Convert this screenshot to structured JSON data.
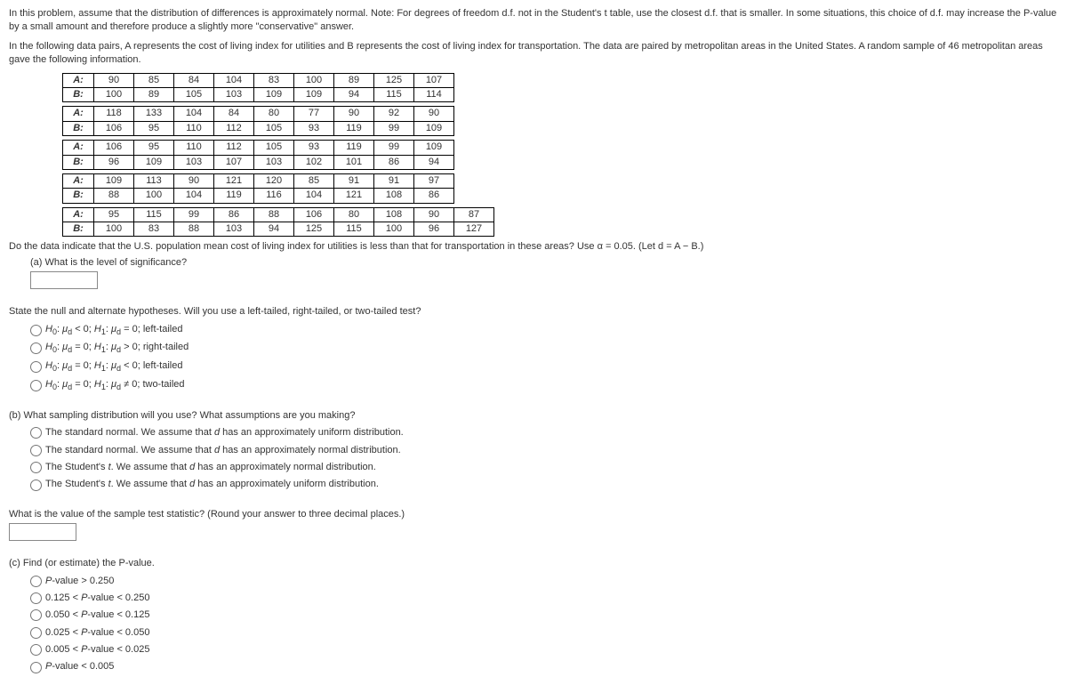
{
  "intro": {
    "p1": "In this problem, assume that the distribution of differences is approximately normal. Note: For degrees of freedom d.f. not in the Student's t table, use the closest d.f. that is smaller. In some situations, this choice of d.f. may increase the P-value by a small amount and therefore produce a slightly more \"conservative\" answer.",
    "p2": "In the following data pairs, A represents the cost of living index for utilities and B represents the cost of living index for transportation. The data are paired by metropolitan areas in the United States. A random sample of 46 metropolitan areas gave the following information."
  },
  "tables": [
    {
      "A": [
        90,
        85,
        84,
        104,
        83,
        100,
        89,
        125,
        107
      ],
      "B": [
        100,
        89,
        105,
        103,
        109,
        109,
        94,
        115,
        114
      ]
    },
    {
      "A": [
        118,
        133,
        104,
        84,
        80,
        77,
        90,
        92,
        90
      ],
      "B": [
        106,
        95,
        110,
        112,
        105,
        93,
        119,
        99,
        109
      ]
    },
    {
      "A": [
        106,
        95,
        110,
        112,
        105,
        93,
        119,
        99,
        109
      ],
      "B": [
        96,
        109,
        103,
        107,
        103,
        102,
        101,
        86,
        94
      ]
    },
    {
      "A": [
        109,
        113,
        90,
        121,
        120,
        85,
        91,
        91,
        97
      ],
      "B": [
        88,
        100,
        104,
        119,
        116,
        104,
        121,
        108,
        86
      ]
    },
    {
      "A": [
        95,
        115,
        99,
        86,
        88,
        106,
        80,
        108,
        90,
        87
      ],
      "B": [
        100,
        83,
        88,
        103,
        94,
        125,
        115,
        100,
        96,
        127
      ]
    }
  ],
  "questionLine": "Do the data indicate that the U.S. population mean cost of living index for utilities is less than that for transportation in these areas? Use α = 0.05. (Let d = A − B.)",
  "partA": {
    "label": "(a) What is the level of significance?"
  },
  "hypHeader": "State the null and alternate hypotheses. Will you use a left-tailed, right-tailed, or two-tailed test?",
  "hypOpts": [
    "H0: μd < 0; H1: μd = 0; left-tailed",
    "H0: μd = 0; H1: μd > 0; right-tailed",
    "H0: μd = 0; H1: μd < 0; left-tailed",
    "H0: μd = 0; H1: μd ≠ 0; two-tailed"
  ],
  "partB": {
    "header": "(b) What sampling distribution will you use? What assumptions are you making?",
    "opts": [
      "The standard normal. We assume that d has an approximately uniform distribution.",
      "The standard normal. We assume that d has an approximately normal distribution.",
      "The Student's t. We assume that d has an approximately normal distribution.",
      "The Student's t. We assume that d has an approximately uniform distribution."
    ],
    "statQ": "What is the value of the sample test statistic? (Round your answer to three decimal places.)"
  },
  "partC": {
    "header": "(c) Find (or estimate) the P-value.",
    "opts": [
      "P-value > 0.250",
      "0.125 < P-value < 0.250",
      "0.050 < P-value < 0.125",
      "0.025 < P-value < 0.050",
      "0.005 < P-value < 0.025",
      "P-value < 0.005"
    ]
  },
  "labels": {
    "A": "A:",
    "B": "B:"
  }
}
